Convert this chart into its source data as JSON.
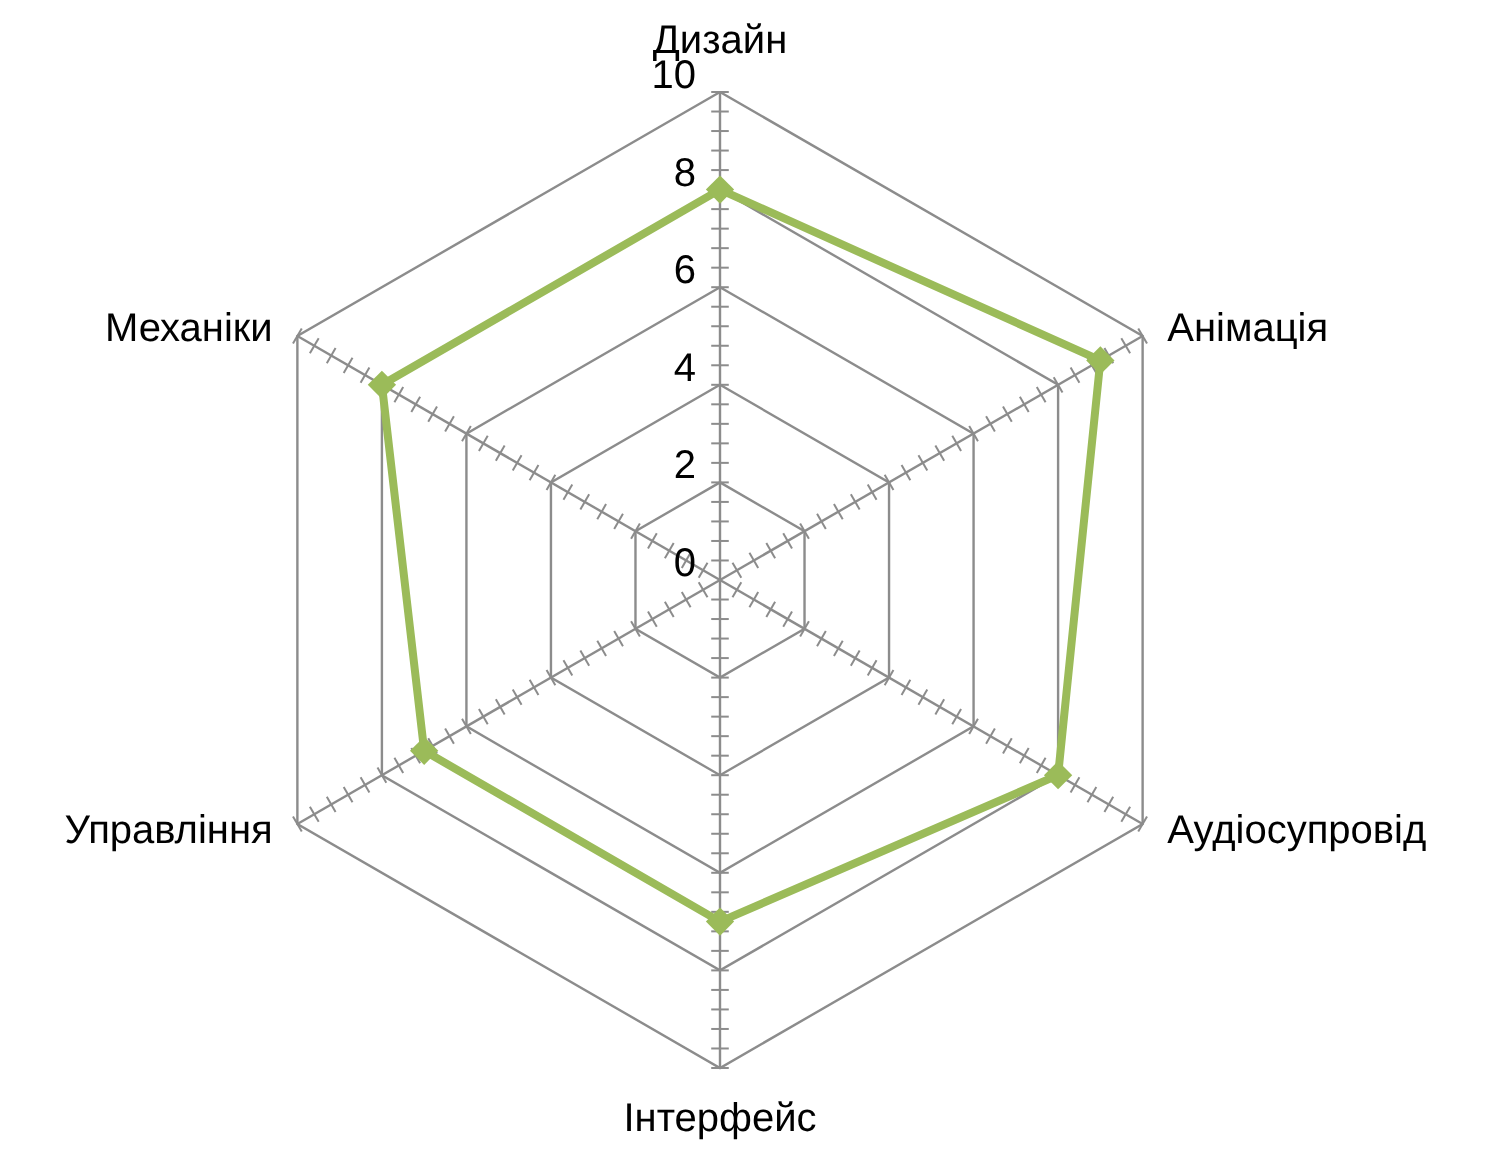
{
  "chart_data": {
    "type": "radar",
    "categories": [
      "Дизайн",
      "Анімація",
      "Аудіосупровід",
      "Інтерфейс",
      "Управління",
      "Механіки"
    ],
    "series": [
      {
        "color": "#9bbb59",
        "values": [
          8,
          9,
          8,
          7,
          7,
          8
        ]
      }
    ],
    "ylim": [
      0,
      10
    ],
    "yticks": [
      0,
      2,
      4,
      6,
      8,
      10
    ],
    "grid": true,
    "marker": "diamond"
  }
}
